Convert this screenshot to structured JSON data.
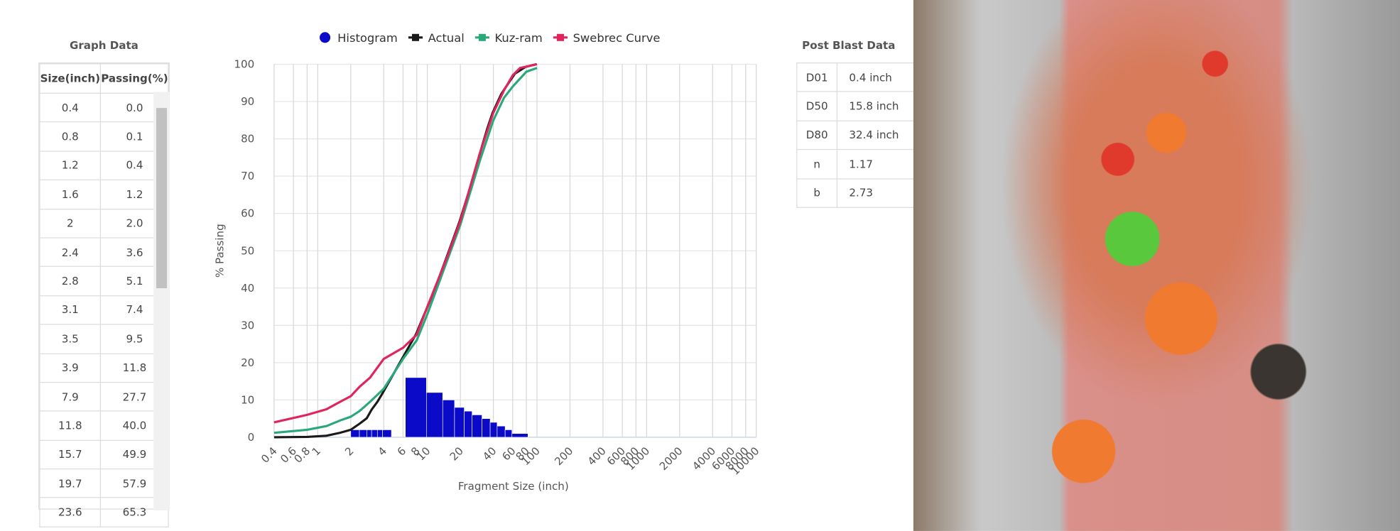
{
  "graph_data": {
    "title": "Graph Data",
    "headers": [
      "Size(inch)",
      "Passing(%)"
    ],
    "rows": [
      [
        "0.4",
        "0.0"
      ],
      [
        "0.8",
        "0.1"
      ],
      [
        "1.2",
        "0.4"
      ],
      [
        "1.6",
        "1.2"
      ],
      [
        "2",
        "2.0"
      ],
      [
        "2.4",
        "3.6"
      ],
      [
        "2.8",
        "5.1"
      ],
      [
        "3.1",
        "7.4"
      ],
      [
        "3.5",
        "9.5"
      ],
      [
        "3.9",
        "11.8"
      ],
      [
        "7.9",
        "27.7"
      ],
      [
        "11.8",
        "40.0"
      ],
      [
        "15.7",
        "49.9"
      ],
      [
        "19.7",
        "57.9"
      ],
      [
        "23.6",
        "65.3"
      ]
    ]
  },
  "post_blast": {
    "title": "Post Blast Data",
    "rows": [
      [
        "D01",
        "0.4 inch"
      ],
      [
        "D50",
        "15.8 inch"
      ],
      [
        "D80",
        "32.4 inch"
      ],
      [
        "n",
        "1.17"
      ],
      [
        "b",
        "2.73"
      ]
    ]
  },
  "chart_data": {
    "type": "line",
    "x_label": "Fragment Size (inch)",
    "y_label": "% Passing",
    "x_scale": "log",
    "grid": true,
    "legend": "top",
    "xlim": [
      0.4,
      10000
    ],
    "ylim": [
      0,
      100
    ],
    "xticks": [
      0.4,
      0.6,
      0.8,
      1,
      2,
      4,
      6,
      8,
      10,
      20,
      40,
      60,
      80,
      100,
      200,
      400,
      600,
      800,
      1000,
      2000,
      4000,
      6000,
      8000,
      10000
    ],
    "yticks": [
      0,
      10,
      20,
      30,
      40,
      50,
      60,
      70,
      80,
      90,
      100
    ],
    "series": [
      {
        "name": "Histogram",
        "type": "histogram",
        "color": "#0a0ac8",
        "bins": [
          2,
          2.4,
          2.8,
          3.1,
          3.5,
          3.9,
          4.7,
          6.3,
          9.8,
          13.8,
          17.7,
          21.7,
          25.6,
          31.5,
          37.4,
          43.3,
          51.2,
          59.1,
          82.7
        ],
        "values": [
          2,
          2,
          2,
          2,
          2,
          2,
          0,
          16,
          12,
          10,
          8,
          7,
          6,
          5,
          4,
          3,
          2,
          1
        ]
      },
      {
        "name": "Actual",
        "type": "line",
        "color": "#1a1a1a",
        "x": [
          0.4,
          0.8,
          1.2,
          1.6,
          2,
          2.4,
          2.8,
          3.1,
          3.5,
          3.9,
          7.9,
          11.8,
          15.7,
          19.7,
          23.6,
          27.6,
          31.5,
          35.4,
          39.4,
          47.2,
          55.1,
          63,
          78.7,
          98.4
        ],
        "values": [
          0,
          0.1,
          0.4,
          1.2,
          2.0,
          3.6,
          5.1,
          7.4,
          9.5,
          11.8,
          27.7,
          40.0,
          49.9,
          57.9,
          65.3,
          72,
          78,
          83,
          87,
          92,
          95,
          97.5,
          99.3,
          100
        ]
      },
      {
        "name": "Kuz-ram",
        "type": "line",
        "color": "#2aa87a",
        "x": [
          0.4,
          0.8,
          1.2,
          1.6,
          2,
          2.4,
          3,
          4,
          6,
          8,
          10,
          15,
          20,
          30,
          40,
          50,
          60,
          80,
          100
        ],
        "values": [
          1.2,
          2,
          3,
          4.5,
          5.5,
          7,
          9.5,
          13,
          21,
          26,
          33,
          47,
          57,
          74,
          85,
          91,
          94,
          98,
          99
        ]
      },
      {
        "name": "Swebrec Curve",
        "type": "line",
        "color": "#e0245e",
        "x": [
          0.4,
          0.8,
          1.2,
          1.6,
          2,
          2.4,
          3,
          4,
          6,
          8,
          10,
          15,
          20,
          30,
          40,
          50,
          60,
          70,
          100
        ],
        "values": [
          4,
          6,
          7.5,
          9.5,
          11,
          13.5,
          16,
          21,
          24,
          27.5,
          35,
          48,
          58,
          76,
          87,
          93,
          97,
          99,
          100
        ]
      }
    ]
  }
}
